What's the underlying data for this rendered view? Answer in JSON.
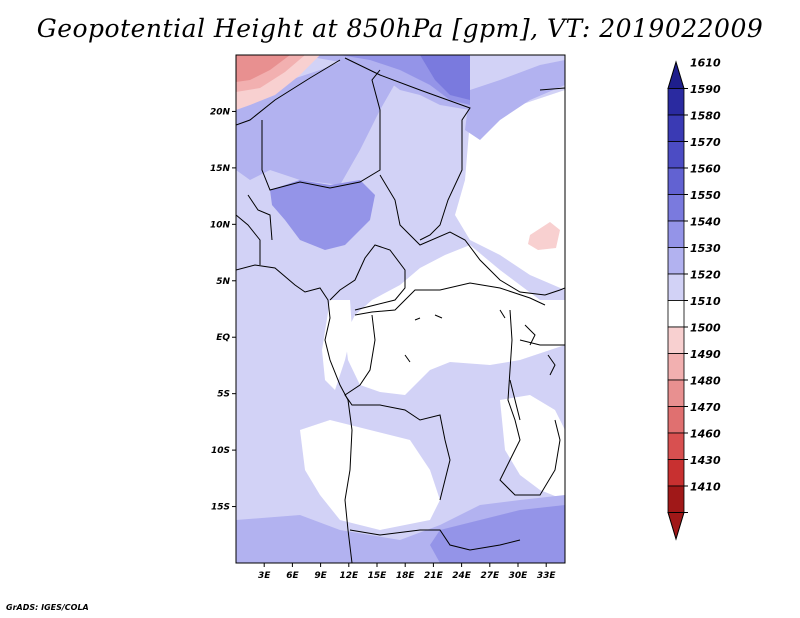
{
  "title": "Geopotential Height at 850hPa [gpm], VT: 2019022009",
  "footer": "GrADS: IGES/COLA",
  "map": {
    "lon_range": [
      0,
      35
    ],
    "lat_range": [
      -20,
      25
    ],
    "lat_ticks": [
      {
        "value": 20,
        "label": "20N"
      },
      {
        "value": 15,
        "label": "15N"
      },
      {
        "value": 10,
        "label": "10N"
      },
      {
        "value": 5,
        "label": "5N"
      },
      {
        "value": 0,
        "label": "EQ"
      },
      {
        "value": -5,
        "label": "5S"
      },
      {
        "value": -10,
        "label": "10S"
      },
      {
        "value": -15,
        "label": "15S"
      }
    ],
    "lon_ticks": [
      {
        "value": 3,
        "label": "3E"
      },
      {
        "value": 6,
        "label": "6E"
      },
      {
        "value": 9,
        "label": "9E"
      },
      {
        "value": 12,
        "label": "12E"
      },
      {
        "value": 15,
        "label": "15E"
      },
      {
        "value": 18,
        "label": "18E"
      },
      {
        "value": 21,
        "label": "21E"
      },
      {
        "value": 24,
        "label": "24E"
      },
      {
        "value": 27,
        "label": "27E"
      },
      {
        "value": 30,
        "label": "30E"
      },
      {
        "value": 33,
        "label": "33E"
      }
    ]
  },
  "colorbar": {
    "levels": [
      "1610",
      "1590",
      "1580",
      "1570",
      "1560",
      "1550",
      "1540",
      "1530",
      "1520",
      "1510",
      "1500",
      "1490",
      "1480",
      "1470",
      "1460",
      "1430",
      "1410"
    ],
    "colors": [
      "#1e1e8c",
      "#2a2aa0",
      "#3a3ab4",
      "#4c4cc4",
      "#6262d2",
      "#7a7ade",
      "#9494e8",
      "#b2b2f0",
      "#d2d2f6",
      "#ffffff",
      "#f8d0d0",
      "#f2b0b0",
      "#e89090",
      "#e07070",
      "#d85050",
      "#c83030",
      "#a01818"
    ]
  },
  "fields": {
    "ocean": "#d2d2f6",
    "land": "#ffffff",
    "low": "#b2b2f0",
    "mid": "#9494e8",
    "high": "#7a7ade",
    "warm_1": "#f8d0d0",
    "warm_2": "#f2b0b0",
    "warm_3": "#e89090"
  }
}
